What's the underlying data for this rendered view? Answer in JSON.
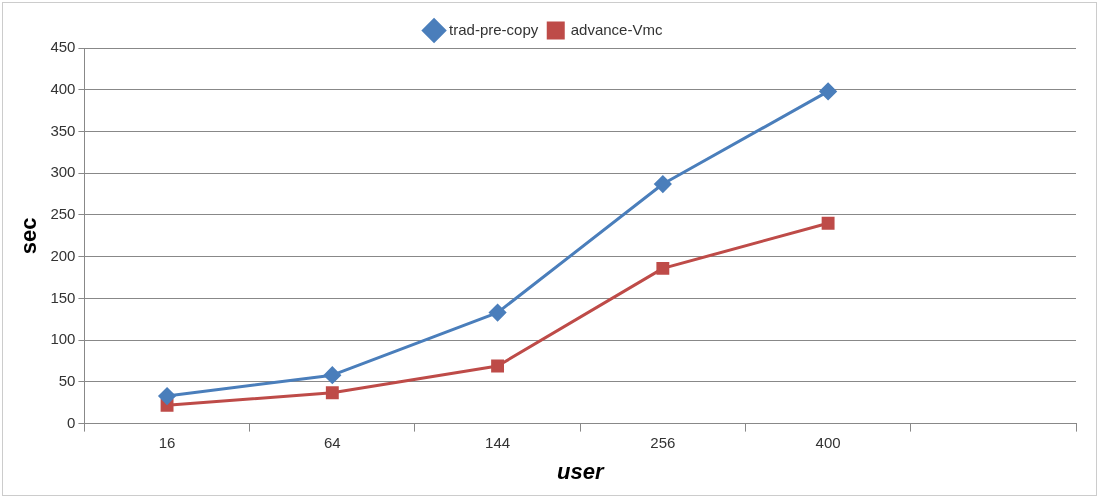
{
  "chart_data": {
    "type": "line",
    "xlabel": "user",
    "ylabel": "sec",
    "categories": [
      "16",
      "64",
      "144",
      "256",
      "400",
      null
    ],
    "series": [
      {
        "name": "trad-pre-copy",
        "color": "#4a7ebb",
        "marker": "diamond",
        "values": [
          33,
          58,
          133,
          287,
          398,
          null
        ]
      },
      {
        "name": "advance-Vmc",
        "color": "#be4b48",
        "marker": "square",
        "values": [
          22,
          37,
          69,
          186,
          240,
          null
        ]
      }
    ],
    "ylim": [
      0,
      450
    ],
    "yticks": [
      0,
      50,
      100,
      150,
      200,
      250,
      300,
      350,
      400,
      450
    ],
    "grid": "y",
    "legend": "top"
  }
}
